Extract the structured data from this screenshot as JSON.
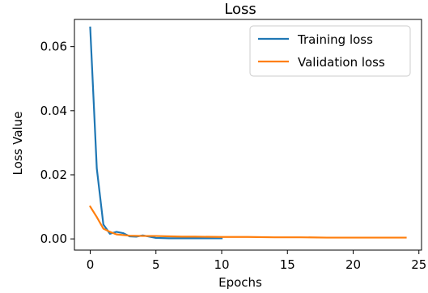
{
  "chart_data": {
    "type": "line",
    "title": "Loss",
    "xlabel": "Epochs",
    "ylabel": "Loss Value",
    "xlim": [
      -1.2,
      25.2
    ],
    "ylim": [
      -0.0035,
      0.0685
    ],
    "xticks": [
      0,
      5,
      10,
      15,
      20,
      25
    ],
    "xtick_labels": [
      "0",
      "5",
      "10",
      "15",
      "20",
      "25"
    ],
    "yticks": [
      0.0,
      0.02,
      0.04,
      0.06
    ],
    "ytick_labels": [
      "0.00",
      "0.02",
      "0.04",
      "0.06"
    ],
    "grid": false,
    "legend_position": "top-right",
    "series": [
      {
        "name": "Training loss",
        "color": "#1f77b4",
        "x": [
          0,
          0.5,
          1,
          1.5,
          2,
          2.5,
          3,
          3.5,
          4,
          5,
          6,
          7,
          8,
          9,
          10
        ],
        "y": [
          0.066,
          0.022,
          0.0045,
          0.0016,
          0.0022,
          0.0018,
          0.0008,
          0.0007,
          0.0011,
          0.0003,
          0.0002,
          0.0002,
          0.0002,
          0.0002,
          0.0002
        ]
      },
      {
        "name": "Validation loss",
        "color": "#ff7f0e",
        "x": [
          0,
          0.5,
          1,
          1.5,
          2,
          3,
          4,
          5,
          6,
          7,
          8,
          10,
          12,
          14,
          16,
          18,
          20,
          22,
          24
        ],
        "y": [
          0.0101,
          0.0068,
          0.0032,
          0.0022,
          0.0014,
          0.001,
          0.0009,
          0.0009,
          0.0008,
          0.0007,
          0.0007,
          0.0006,
          0.0006,
          0.0005,
          0.0005,
          0.0004,
          0.0004,
          0.0004,
          0.0004
        ]
      }
    ]
  }
}
